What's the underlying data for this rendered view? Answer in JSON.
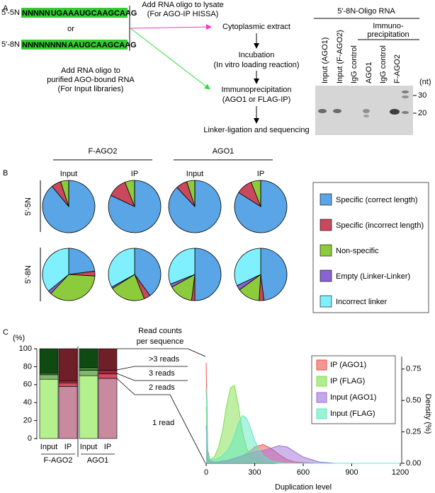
{
  "panel_labels": [
    "A",
    "B",
    "C"
  ],
  "panel_a": {
    "probes": [
      {
        "label": "5'-5N",
        "random": "NNNNN",
        "fixed": "UGAAAUGCAAGCAAG"
      },
      {
        "label": "5'-8N",
        "random": "NNNNNNNN",
        "fixed": "AAUGCAAGCAAG"
      }
    ],
    "or": "or",
    "lysate_note": [
      "Add RNA oligo to lysate",
      "(For AGO-IP HISSA)"
    ],
    "input_note": [
      "Add RNA oligo to",
      "purified AGO-bound RNA",
      "(For Input libraries)"
    ],
    "steps": [
      [
        "Cytoplasmic extract"
      ],
      [
        "Incubation",
        "(In vitro loading reaction)"
      ],
      [
        "Immunoprecipitation",
        "(AGO1 or FLAG-IP)"
      ],
      [
        "Linker-ligation and sequencing"
      ]
    ],
    "gel": {
      "title": "5'-8N-Oligo RNA",
      "ip_header": [
        "Immuno-",
        "precipitation"
      ],
      "lanes": [
        {
          "label": "Input (AGO1)",
          "color": "#33cc33"
        },
        {
          "label": "Input (F-AGO2)",
          "color": "#33cc33"
        },
        {
          "label": "IgG control",
          "color": "#000000"
        },
        {
          "label": "AGO1",
          "color": "#ff33cc"
        },
        {
          "label": "IgG control",
          "color": "#000000"
        },
        {
          "label": "F-AGO2",
          "color": "#ff33cc"
        }
      ],
      "unit": "(nt)",
      "markers": [
        30,
        20
      ]
    }
  },
  "chart_data": [
    {
      "type": "pie",
      "groups": [
        "F-AGO2",
        "AGO1"
      ],
      "columns": [
        "Input",
        "IP",
        "Input",
        "IP"
      ],
      "categories": [
        "Specific (correct length)",
        "Specific (incorrect length)",
        "Non-specific",
        "Empty (Linker-Linker)",
        "Incorrect linker"
      ],
      "colors": [
        "#5aa5e6",
        "#c9485b",
        "#8ccc3c",
        "#8a63d2",
        "#80f0ff"
      ],
      "rows": [
        {
          "label": "5'-5N",
          "pies": [
            [
              89,
              6,
              5,
              0,
              0
            ],
            [
              82,
              12,
              6,
              0,
              0
            ],
            [
              88,
              7,
              5,
              0,
              0
            ],
            [
              84,
              10,
              6,
              0,
              0
            ]
          ]
        },
        {
          "label": "5'-8N",
          "pies": [
            [
              23,
              3,
              36,
              2,
              36
            ],
            [
              40,
              4,
              22,
              1,
              33
            ],
            [
              50,
              2,
              15,
              2,
              31
            ],
            [
              48,
              3,
              14,
              3,
              32
            ]
          ]
        }
      ]
    },
    {
      "type": "bar",
      "stacked": true,
      "y_label": "(%)",
      "title": [
        "Read counts",
        "per sequence"
      ],
      "categories": [
        "Input",
        "IP",
        "Input",
        "IP"
      ],
      "groups": [
        "F-AGO2",
        "AGO1"
      ],
      "ylim": [
        0,
        100
      ],
      "yticks": [
        0,
        20,
        40,
        60,
        80,
        100
      ],
      "series": [
        {
          "name": "1 read",
          "colors": [
            "#b5f08e",
            "#c9899e",
            "#b5f08e",
            "#c9899e"
          ],
          "values": [
            66,
            58,
            70,
            67
          ]
        },
        {
          "name": "2 reads",
          "colors": [
            "#82b56e",
            "#d34a63",
            "#82b56e",
            "#d34a63"
          ],
          "values": [
            5,
            4,
            6,
            5
          ]
        },
        {
          "name": "3 reads",
          "colors": [
            "#3f7d36",
            "#9c2a3b",
            "#3f7d36",
            "#9c2a3b"
          ],
          "values": [
            2,
            2,
            3,
            4
          ]
        },
        {
          "name": ">3 reads",
          "colors": [
            "#0e4a12",
            "#6e1f28",
            "#0e4a12",
            "#6e1f28"
          ],
          "values": [
            27,
            36,
            21,
            24
          ]
        }
      ]
    },
    {
      "type": "area",
      "x_label": "Duplication level",
      "y_label": "Density (%)",
      "xlim": [
        0,
        1200
      ],
      "xticks": [
        0,
        300,
        600,
        900,
        1200
      ],
      "ylim": [
        0,
        0.85
      ],
      "yticks": [
        {
          "value": 0,
          "label": "0.00"
        },
        {
          "value": 0.25,
          "label": "0.25"
        },
        {
          "value": 0.5,
          "label": "0.50"
        },
        {
          "value": 0.75,
          "label": "0.75"
        }
      ],
      "x": [
        0,
        10,
        25,
        50,
        75,
        100,
        125,
        150,
        175,
        200,
        225,
        250,
        275,
        300,
        350,
        400,
        450,
        500,
        550,
        600,
        700,
        800,
        900,
        1200
      ],
      "series": [
        {
          "name": "IP (AGO1)",
          "color": "#f0504a",
          "values": [
            0.8,
            0.1,
            0.02,
            0.01,
            0.01,
            0.01,
            0.02,
            0.03,
            0.04,
            0.05,
            0.06,
            0.08,
            0.1,
            0.13,
            0.15,
            0.12,
            0.07,
            0.03,
            0.01,
            0.005,
            0,
            0,
            0,
            0
          ]
        },
        {
          "name": "IP (FLAG)",
          "color": "#7de04a",
          "values": [
            0.45,
            0.06,
            0.03,
            0.05,
            0.12,
            0.25,
            0.45,
            0.6,
            0.62,
            0.45,
            0.25,
            0.12,
            0.06,
            0.03,
            0.01,
            0.005,
            0,
            0,
            0,
            0,
            0,
            0,
            0,
            0
          ]
        },
        {
          "name": "Input (AGO1)",
          "color": "#9b6fd9",
          "values": [
            0.3,
            0.03,
            0.01,
            0.01,
            0.01,
            0.02,
            0.02,
            0.03,
            0.04,
            0.05,
            0.06,
            0.07,
            0.08,
            0.09,
            0.1,
            0.12,
            0.14,
            0.13,
            0.09,
            0.05,
            0.01,
            0,
            0,
            0
          ]
        },
        {
          "name": "Input (FLAG)",
          "color": "#5ee8c0",
          "values": [
            0.6,
            0.08,
            0.03,
            0.03,
            0.04,
            0.06,
            0.09,
            0.14,
            0.22,
            0.32,
            0.38,
            0.36,
            0.28,
            0.18,
            0.06,
            0.02,
            0.005,
            0,
            0,
            0,
            0,
            0,
            0,
            0
          ]
        }
      ]
    }
  ]
}
